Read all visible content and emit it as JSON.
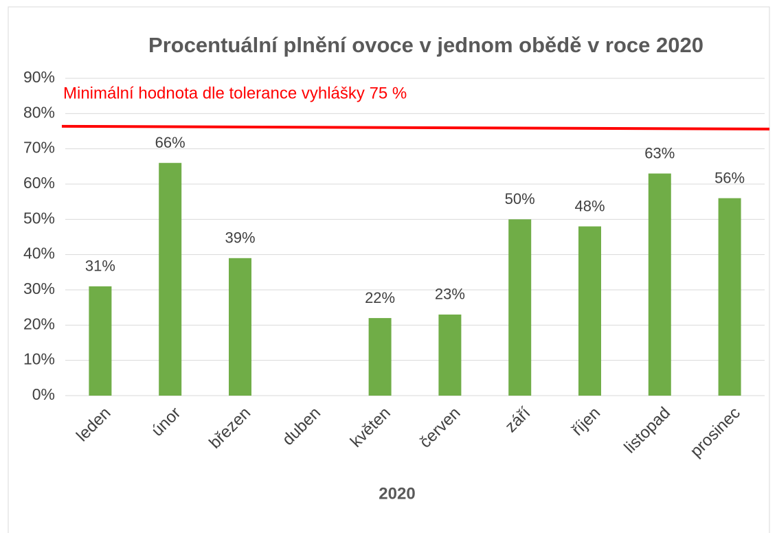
{
  "chart_data": {
    "type": "bar",
    "title": "Procentuální plnění ovoce v jednom obědě v roce 2020",
    "x_label": "2020",
    "annotation": "Minimální hodnota dle tolerance vyhlášky 75 %",
    "reference_line": {
      "start": 76.4,
      "end": 75.6,
      "color": "#ff0000"
    },
    "categories": [
      "leden",
      "únor",
      "březen",
      "duben",
      "květen",
      "červen",
      "září",
      "říjen",
      "listopad",
      "prosinec"
    ],
    "values": [
      31,
      66,
      39,
      null,
      22,
      23,
      50,
      48,
      63,
      56
    ],
    "value_labels": [
      "31%",
      "66%",
      "39%",
      null,
      "22%",
      "23%",
      "50%",
      "48%",
      "63%",
      "56%"
    ],
    "color": "#70ad47",
    "ylim": [
      0,
      90
    ],
    "yticks": [
      {
        "value": 0,
        "label": "0%"
      },
      {
        "value": 10,
        "label": "10%"
      },
      {
        "value": 20,
        "label": "20%"
      },
      {
        "value": 30,
        "label": "30%"
      },
      {
        "value": 40,
        "label": "40%"
      },
      {
        "value": 50,
        "label": "50%"
      },
      {
        "value": 60,
        "label": "60%"
      },
      {
        "value": 70,
        "label": "70%"
      },
      {
        "value": 80,
        "label": "80%"
      },
      {
        "value": 90,
        "label": "90%"
      }
    ],
    "grid": true
  }
}
